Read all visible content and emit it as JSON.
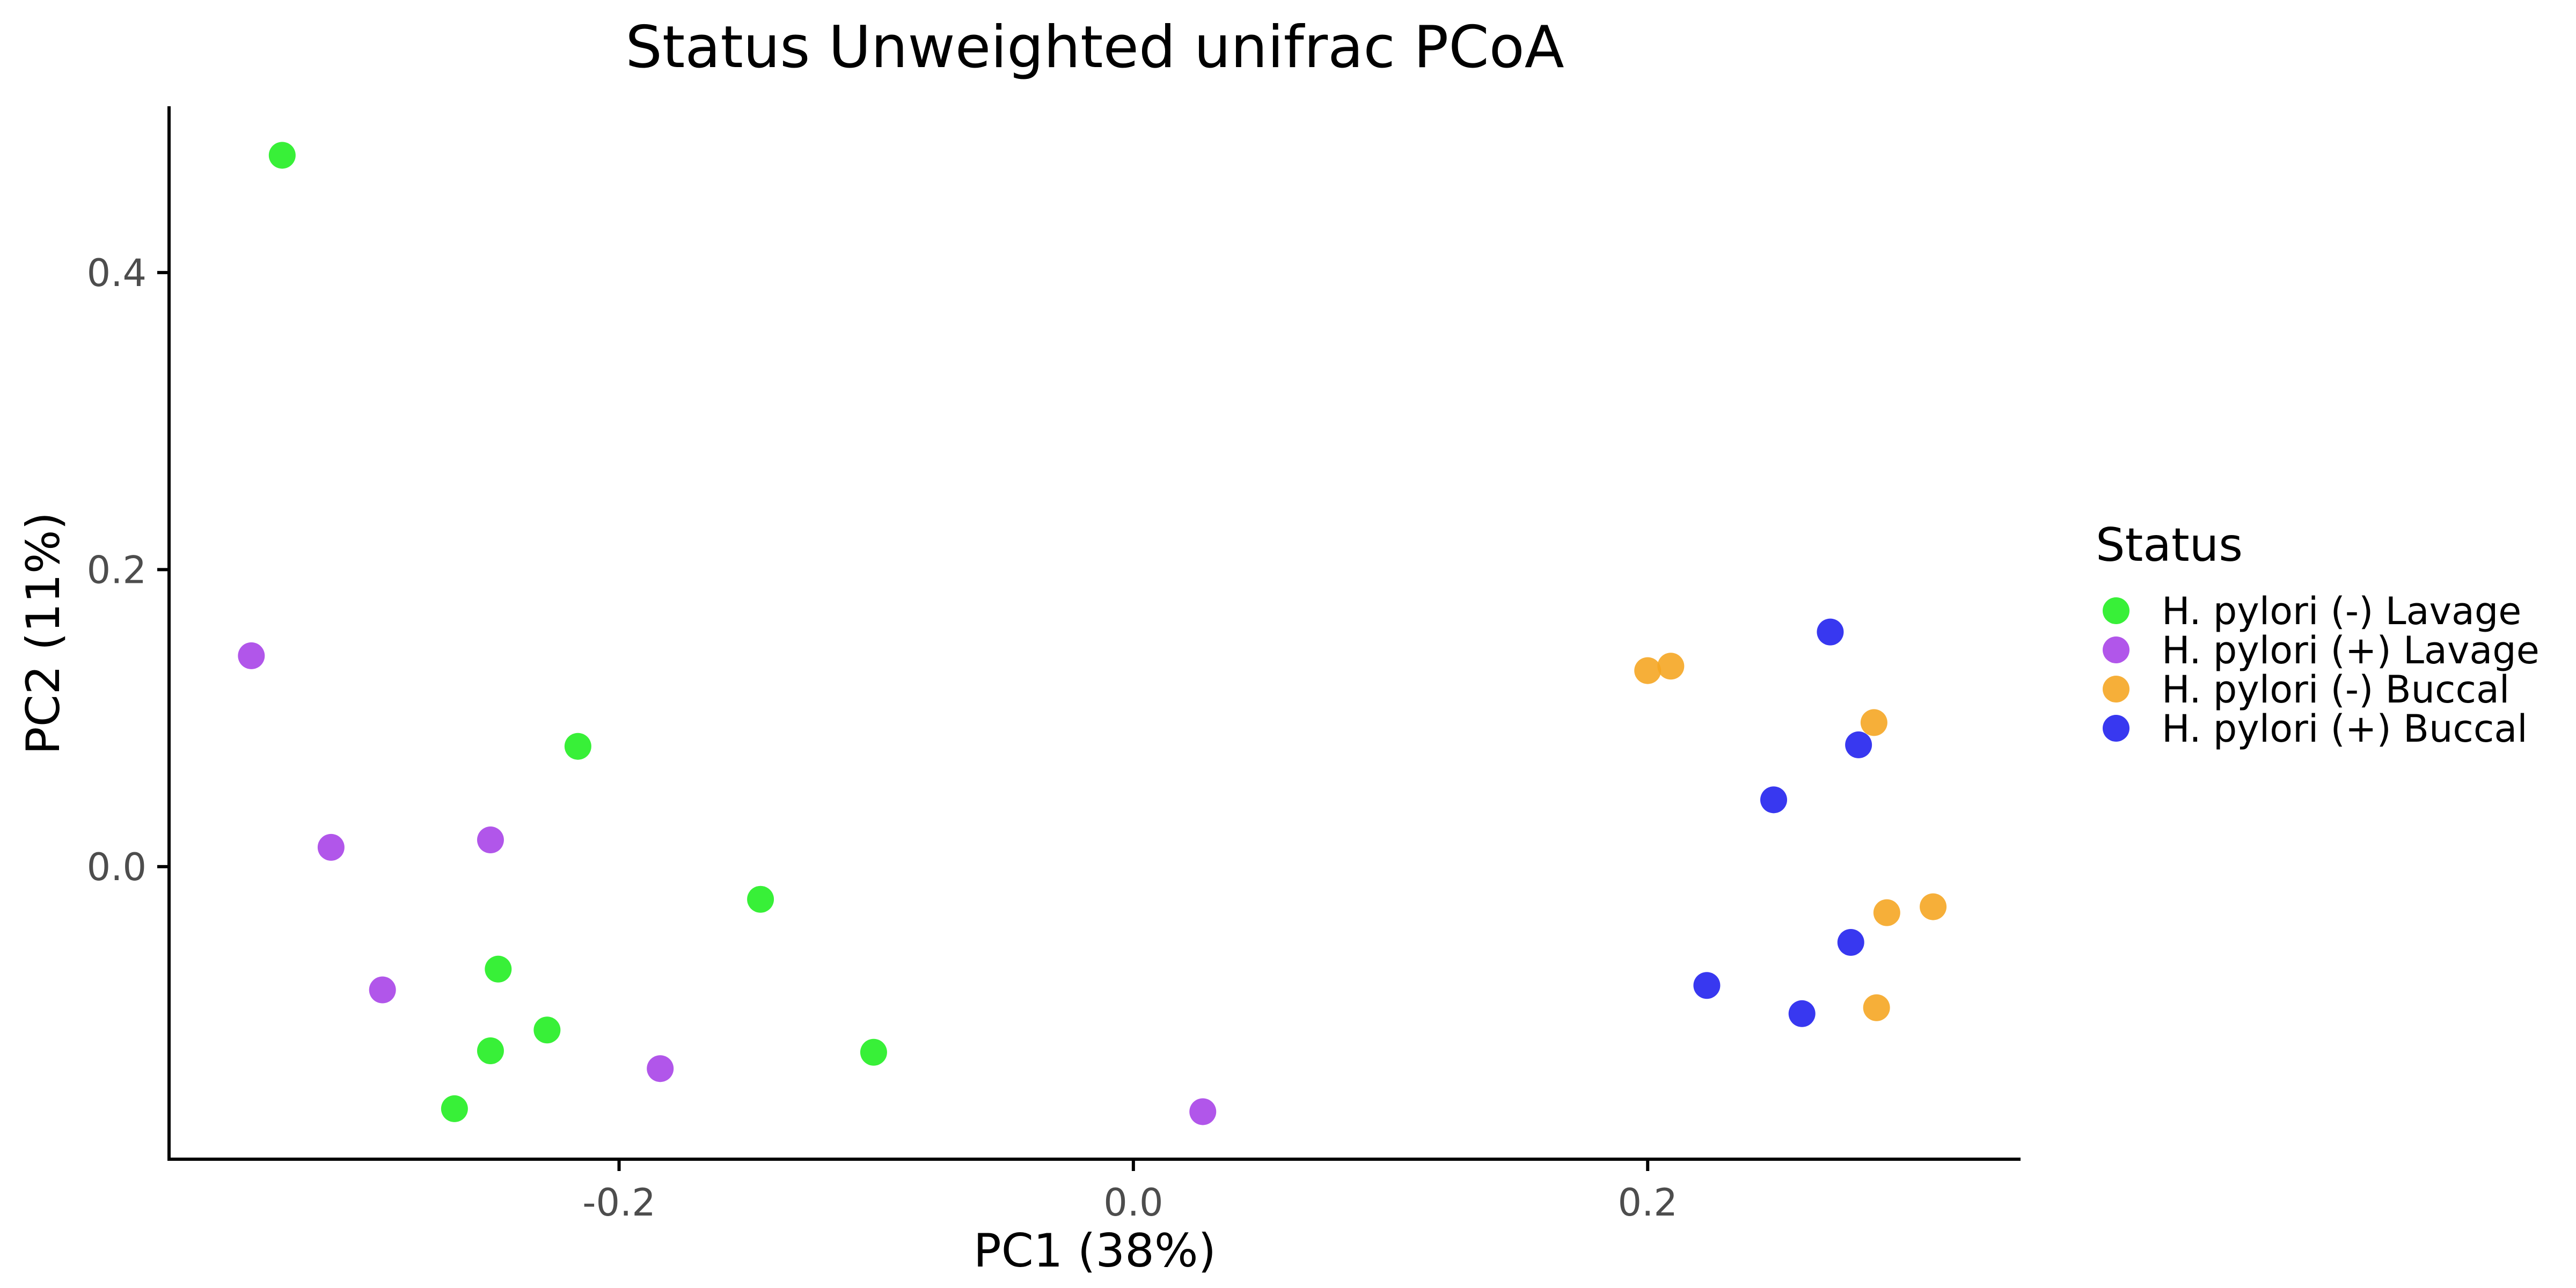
{
  "chart_data": {
    "type": "scatter",
    "title": "Status Unweighted unifrac PCoA",
    "xlabel": "PC1 (38%)",
    "ylabel": "PC2 (11%)",
    "xlim": [
      -0.375,
      0.345
    ],
    "ylim": [
      -0.197,
      0.512
    ],
    "x_ticks": [
      {
        "value": -0.2,
        "label": "-0.2"
      },
      {
        "value": 0.0,
        "label": "0.0"
      },
      {
        "value": 0.2,
        "label": "0.2"
      }
    ],
    "y_ticks": [
      {
        "value": 0.0,
        "label": "0.0"
      },
      {
        "value": 0.2,
        "label": "0.2"
      },
      {
        "value": 0.4,
        "label": "0.4"
      }
    ],
    "grid": false,
    "legend_title": "Status",
    "legend_position": "right",
    "series": [
      {
        "name": "H. pylori (-) Lavage",
        "color": "#22ee22",
        "points": [
          [
            -0.331,
            0.479
          ],
          [
            -0.216,
            0.081
          ],
          [
            -0.145,
            -0.022
          ],
          [
            -0.247,
            -0.069
          ],
          [
            -0.228,
            -0.11
          ],
          [
            -0.25,
            -0.124
          ],
          [
            -0.101,
            -0.125
          ],
          [
            -0.264,
            -0.163
          ]
        ]
      },
      {
        "name": "H. pylori (+) Lavage",
        "color": "#a844e8",
        "points": [
          [
            -0.343,
            0.142
          ],
          [
            -0.312,
            0.013
          ],
          [
            -0.25,
            0.018
          ],
          [
            -0.292,
            -0.083
          ],
          [
            -0.184,
            -0.136
          ],
          [
            0.027,
            -0.165
          ]
        ]
      },
      {
        "name": "H. pylori (-) Buccal",
        "color": "#f5a623",
        "points": [
          [
            0.2,
            0.132
          ],
          [
            0.209,
            0.135
          ],
          [
            0.288,
            0.097
          ],
          [
            0.293,
            -0.031
          ],
          [
            0.311,
            -0.027
          ],
          [
            0.289,
            -0.095
          ]
        ]
      },
      {
        "name": "H. pylori (+) Buccal",
        "color": "#2222ee",
        "points": [
          [
            0.271,
            0.158
          ],
          [
            0.282,
            0.082
          ],
          [
            0.249,
            0.045
          ],
          [
            0.279,
            -0.051
          ],
          [
            0.223,
            -0.08
          ],
          [
            0.26,
            -0.099
          ]
        ]
      }
    ]
  }
}
